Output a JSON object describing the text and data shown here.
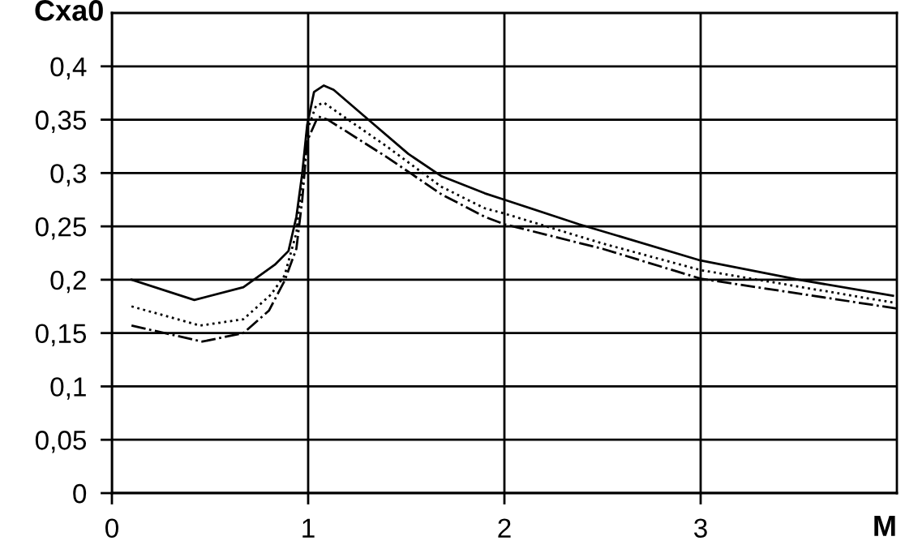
{
  "chart_data": {
    "type": "line",
    "xlabel": "M",
    "ylabel": "Cxa0",
    "series": [
      {
        "color": "#000000",
        "line_style": "solid",
        "x": [
          0.1,
          0.42,
          0.67,
          0.83,
          0.9,
          0.94,
          0.97,
          0.995,
          1.03,
          1.08,
          1.13,
          1.32,
          1.51,
          1.68,
          1.9,
          2.0,
          2.38,
          3.0,
          3.5,
          3.98
        ],
        "values": [
          0.2,
          0.181,
          0.193,
          0.214,
          0.227,
          0.259,
          0.3,
          0.345,
          0.376,
          0.382,
          0.378,
          0.348,
          0.318,
          0.297,
          0.281,
          0.275,
          0.252,
          0.218,
          0.2,
          0.185
        ]
      },
      {
        "color": "#000000",
        "line_style": "dotted",
        "x": [
          0.1,
          0.45,
          0.67,
          0.81,
          0.88,
          0.94,
          0.97,
          0.995,
          1.04,
          1.08,
          1.18,
          1.4,
          1.68,
          1.9,
          2.0,
          2.5,
          3.0,
          4.0
        ],
        "values": [
          0.175,
          0.157,
          0.163,
          0.186,
          0.204,
          0.244,
          0.295,
          0.34,
          0.363,
          0.366,
          0.353,
          0.325,
          0.287,
          0.267,
          0.262,
          0.234,
          0.209,
          0.178
        ]
      },
      {
        "color": "#000000",
        "line_style": "dashdot",
        "x": [
          0.1,
          0.46,
          0.67,
          0.8,
          0.88,
          0.94,
          0.97,
          0.995,
          1.05,
          1.1,
          1.4,
          1.68,
          1.9,
          2.0,
          2.5,
          3.0,
          4.0
        ],
        "values": [
          0.157,
          0.142,
          0.15,
          0.171,
          0.199,
          0.229,
          0.275,
          0.33,
          0.353,
          0.35,
          0.315,
          0.28,
          0.259,
          0.252,
          0.229,
          0.201,
          0.173
        ]
      }
    ],
    "xlim": [
      0,
      4
    ],
    "xticks": [
      0,
      1,
      2,
      3
    ],
    "ylim": [
      0,
      0.45
    ],
    "yticks": [
      0,
      {
        "value": 0.05,
        "label": "0,05"
      },
      {
        "value": 0.1,
        "label": "0,1"
      },
      {
        "value": 0.15,
        "label": "0,15"
      },
      {
        "value": 0.2,
        "label": "0,2"
      },
      {
        "value": 0.25,
        "label": "0,25"
      },
      {
        "value": 0.3,
        "label": "0,3"
      },
      {
        "value": 0.35,
        "label": "0,35"
      },
      {
        "value": 0.4,
        "label": "0,4"
      }
    ],
    "grid": true,
    "legend": false,
    "marker": "none"
  }
}
